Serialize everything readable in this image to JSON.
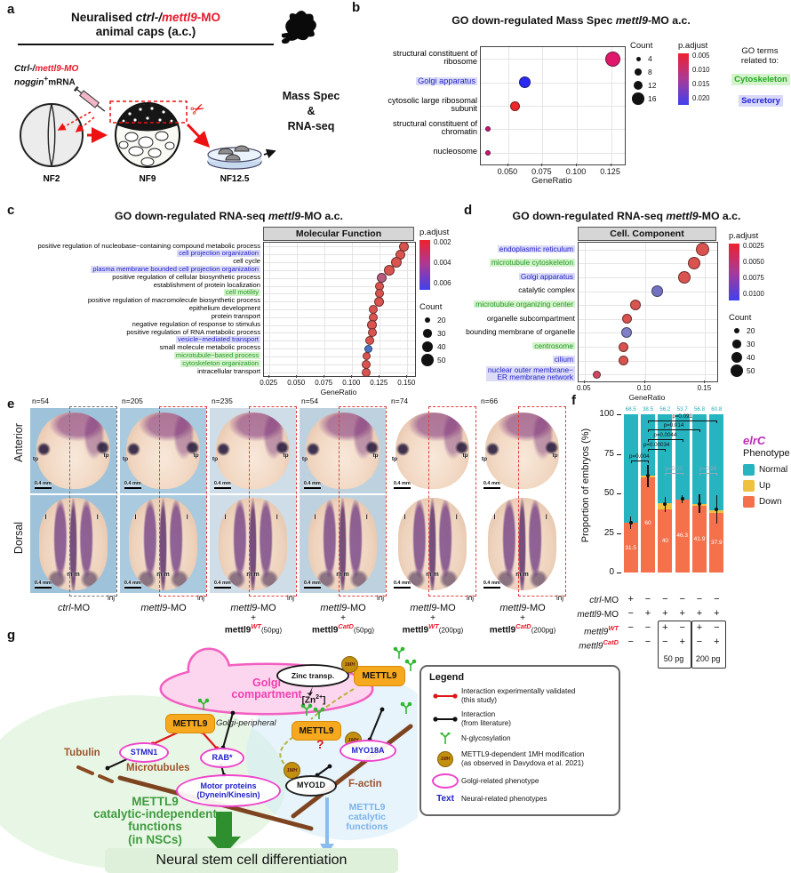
{
  "panel_labels": {
    "a": "a",
    "b": "b",
    "c": "c",
    "d": "d",
    "e": "e",
    "f": "f",
    "g": "g"
  },
  "panel_a": {
    "title_seg1": "Neuralised ",
    "title_seg2": "ctrl-/",
    "title_seg3": "mettl9",
    "title_seg4": "-MO",
    "title_line2": "animal caps (a.c.)",
    "inj_black": "Ctrl-/",
    "inj_red": "mettl9-MO",
    "noggin_italic": "noggin",
    "noggin_plus": "+",
    "noggin_rest": "mRNA",
    "stage1": "NF2",
    "stage2": "NF9",
    "stage3": "NF12.5",
    "out1": "Mass Spec",
    "out2": "&",
    "out3": "RNA-seq"
  },
  "chart_data": [
    {
      "id": "b",
      "type": "scatter",
      "title_pre": "GO down-regulated Mass Spec ",
      "title_italic": "mettl9",
      "title_post": "-MO a.c.",
      "xlabel": "GeneRatio",
      "xlim": [
        0.03,
        0.135
      ],
      "xticks": [
        "0.050",
        "0.075",
        "0.100",
        "0.125"
      ],
      "xtick_vals": [
        0.05,
        0.075,
        0.1,
        0.125
      ],
      "categories": [
        {
          "lines": [
            "structural constituent of",
            "ribosome"
          ],
          "color": "#000000"
        },
        {
          "lines": [
            "Golgi apparatus"
          ],
          "color": "#2222cc",
          "bg": "#dcdcf7"
        },
        {
          "lines": [
            "cytosolic large ribosomal",
            "subunit"
          ],
          "color": "#000000"
        },
        {
          "lines": [
            "structural constituent of",
            "chromatin"
          ],
          "color": "#000000"
        },
        {
          "lines": [
            "nucleosome"
          ],
          "color": "#000000"
        }
      ],
      "points": [
        {
          "gene_ratio": 0.126,
          "count": 16,
          "size": 17,
          "color": "#e0186c"
        },
        {
          "gene_ratio": 0.062,
          "count": 12,
          "size": 13,
          "color": "#2a2af0"
        },
        {
          "gene_ratio": 0.055,
          "count": 10,
          "size": 11,
          "color": "#ef2929"
        },
        {
          "gene_ratio": 0.035,
          "count": 4,
          "size": 6,
          "color": "#cc1577"
        },
        {
          "gene_ratio": 0.035,
          "count": 4,
          "size": 6,
          "color": "#cc1577"
        }
      ],
      "count_legend": {
        "title": "Count",
        "items": [
          "4",
          "8",
          "12",
          "16"
        ]
      },
      "p_legend": {
        "title": "p.adjust",
        "ticks": [
          "0.005",
          "0.010",
          "0.015",
          "0.020"
        ]
      },
      "note": {
        "line1": "GO terms",
        "line2": "related to:",
        "items": [
          {
            "text": "Cytoskeleton",
            "color": "#22aa22",
            "bg": "#d4f2cc"
          },
          {
            "text": "Secretory",
            "color": "#2222dd",
            "bg": "#d8d8f8"
          }
        ]
      }
    },
    {
      "id": "c",
      "type": "scatter",
      "title_pre": "GO down-regulated RNA-seq ",
      "title_italic": "mettl9",
      "title_post": "-MO a.c.",
      "facet": "Molecular Function",
      "xlabel": "GeneRatio",
      "xlim": [
        0.02,
        0.157
      ],
      "xticks": [
        "0.025",
        "0.050",
        "0.075",
        "0.100",
        "0.125",
        "0.150"
      ],
      "xtick_vals": [
        0.025,
        0.05,
        0.075,
        0.1,
        0.125,
        0.15
      ],
      "categories": [
        {
          "lines": [
            "positive regulation of nucleobase−containing compound metabolic process"
          ],
          "color": "#000000"
        },
        {
          "lines": [
            "cell projection organization"
          ],
          "color": "#2222cc",
          "bg": "#dcdcf7"
        },
        {
          "lines": [
            "cell cycle"
          ],
          "color": "#000000"
        },
        {
          "lines": [
            "plasma membrane bounded cell projection organization"
          ],
          "color": "#2222cc",
          "bg": "#dcdcf7"
        },
        {
          "lines": [
            "positive regulation of cellular biosynthetic process"
          ],
          "color": "#000000"
        },
        {
          "lines": [
            "establishment of protein localization"
          ],
          "color": "#000000"
        },
        {
          "lines": [
            "cell motility"
          ],
          "color": "#229922",
          "bg": "#d4f2cc"
        },
        {
          "lines": [
            "positive regulation of macromolecule biosynthetic process"
          ],
          "color": "#000000"
        },
        {
          "lines": [
            "epithelium development"
          ],
          "color": "#000000"
        },
        {
          "lines": [
            "protein transport"
          ],
          "color": "#000000"
        },
        {
          "lines": [
            "negative regulation of response to stimulus"
          ],
          "color": "#000000"
        },
        {
          "lines": [
            "positive regulation of RNA metabolic process"
          ],
          "color": "#000000"
        },
        {
          "lines": [
            "vesicle−mediated transport"
          ],
          "color": "#2222cc",
          "bg": "#dcdcf7"
        },
        {
          "lines": [
            "small molecule metabolic process"
          ],
          "color": "#000000"
        },
        {
          "lines": [
            "microtubule−based process"
          ],
          "color": "#229922",
          "bg": "#d4f2cc"
        },
        {
          "lines": [
            "cytoskeleton organization"
          ],
          "color": "#229922",
          "bg": "#d4f2cc"
        },
        {
          "lines": [
            "intracellular transport"
          ],
          "color": "#000000"
        }
      ],
      "points": [
        {
          "gene_ratio": 0.147,
          "size": 11,
          "color": "#d9534f"
        },
        {
          "gene_ratio": 0.144,
          "size": 11,
          "color": "#d9534f"
        },
        {
          "gene_ratio": 0.14,
          "size": 12,
          "color": "#d9534f"
        },
        {
          "gene_ratio": 0.134,
          "size": 12,
          "color": "#d9534f"
        },
        {
          "gene_ratio": 0.127,
          "size": 11,
          "color": "#b85a80"
        },
        {
          "gene_ratio": 0.125,
          "size": 10,
          "color": "#d9534f"
        },
        {
          "gene_ratio": 0.125,
          "size": 10,
          "color": "#d9534f"
        },
        {
          "gene_ratio": 0.124,
          "size": 11,
          "color": "#d9534f"
        },
        {
          "gene_ratio": 0.119,
          "size": 10,
          "color": "#d9534f"
        },
        {
          "gene_ratio": 0.119,
          "size": 10,
          "color": "#d9534f"
        },
        {
          "gene_ratio": 0.118,
          "size": 11,
          "color": "#d9534f"
        },
        {
          "gene_ratio": 0.118,
          "size": 10,
          "color": "#d9534f"
        },
        {
          "gene_ratio": 0.116,
          "size": 10,
          "color": "#d9534f"
        },
        {
          "gene_ratio": 0.115,
          "size": 9,
          "color": "#4a74c4"
        },
        {
          "gene_ratio": 0.113,
          "size": 9,
          "color": "#d9534f"
        },
        {
          "gene_ratio": 0.113,
          "size": 10,
          "color": "#d9534f"
        },
        {
          "gene_ratio": 0.113,
          "size": 10,
          "color": "#d9534f"
        }
      ],
      "count_legend": {
        "title": "Count",
        "items": [
          "20",
          "30",
          "40",
          "50"
        ]
      },
      "p_legend": {
        "title": "p.adjust",
        "ticks": [
          "0.002",
          "0.004",
          "0.006"
        ]
      }
    },
    {
      "id": "d",
      "type": "scatter",
      "title_pre": "GO down-regulated RNA-seq ",
      "title_italic": "mettl9",
      "title_post": "-MO a.c.",
      "facet": "Cell. Component",
      "xlabel": "GeneRatio",
      "xlim": [
        0.045,
        0.16
      ],
      "xticks": [
        "0.05",
        "0.10",
        "0.15"
      ],
      "xtick_vals": [
        0.05,
        0.1,
        0.15
      ],
      "categories": [
        {
          "lines": [
            "endoplasmic reticulum"
          ],
          "color": "#2222cc",
          "bg": "#dcdcf7"
        },
        {
          "lines": [
            "microtubule cytoskeleton"
          ],
          "color": "#229922",
          "bg": "#d4f2cc"
        },
        {
          "lines": [
            "Golgi apparatus"
          ],
          "color": "#2222cc",
          "bg": "#dcdcf7"
        },
        {
          "lines": [
            "catalytic complex"
          ],
          "color": "#000000"
        },
        {
          "lines": [
            "microtubule organizing center"
          ],
          "color": "#229922",
          "bg": "#d4f2cc"
        },
        {
          "lines": [
            "organelle subcompartment"
          ],
          "color": "#000000"
        },
        {
          "lines": [
            "bounding membrane of organelle"
          ],
          "color": "#000000"
        },
        {
          "lines": [
            "centrosome"
          ],
          "color": "#229922",
          "bg": "#d4f2cc"
        },
        {
          "lines": [
            "cilium"
          ],
          "color": "#2222cc",
          "bg": "#dcdcf7"
        },
        {
          "lines": [
            "nuclear outer membrane−",
            "ER membrane network"
          ],
          "color": "#2222cc",
          "bg": "#dcdcf7"
        }
      ],
      "points": [
        {
          "gene_ratio": 0.148,
          "size": 15,
          "color": "#d9534f"
        },
        {
          "gene_ratio": 0.141,
          "size": 14,
          "color": "#d9534f"
        },
        {
          "gene_ratio": 0.133,
          "size": 14,
          "color": "#d9534f"
        },
        {
          "gene_ratio": 0.11,
          "size": 13,
          "color": "#7272c0"
        },
        {
          "gene_ratio": 0.092,
          "size": 12,
          "color": "#d9534f"
        },
        {
          "gene_ratio": 0.085,
          "size": 11,
          "color": "#d9534f"
        },
        {
          "gene_ratio": 0.085,
          "size": 12,
          "color": "#8080c8"
        },
        {
          "gene_ratio": 0.082,
          "size": 11,
          "color": "#d9534f"
        },
        {
          "gene_ratio": 0.082,
          "size": 11,
          "color": "#d9534f"
        },
        {
          "gene_ratio": 0.06,
          "size": 9,
          "color": "#cf4860"
        }
      ],
      "count_legend": {
        "title": "Count",
        "items": [
          "20",
          "30",
          "40",
          "50"
        ]
      },
      "p_legend": {
        "title": "p.adjust",
        "ticks": [
          "0.0025",
          "0.0050",
          "0.0075",
          "0.0100"
        ]
      }
    },
    {
      "id": "f",
      "type": "stacked_bar",
      "ylabel": "Proportion of embryos (%)",
      "yticks": [
        0,
        25,
        50,
        75,
        100
      ],
      "gene_label": "elrC",
      "legend_title": "Phenotype",
      "series": [
        {
          "name": "Normal",
          "color": "#27b4c1"
        },
        {
          "name": "Up",
          "color": "#efc13e"
        },
        {
          "name": "Down",
          "color": "#f4714b"
        }
      ],
      "bars": [
        {
          "normal": 68.5,
          "up": 0,
          "down": 31.5,
          "label_top": "68.5",
          "label_down": "31.5",
          "err_center": 31.5,
          "err": 4
        },
        {
          "normal": 38.5,
          "up": 1.5,
          "down": 60,
          "label_top": "38.5",
          "label_down": "60",
          "err_center": 61,
          "err": 7
        },
        {
          "normal": 56.2,
          "up": 3.8,
          "down": 40,
          "label_top": "56.2",
          "label_down": "40",
          "err_center": 43,
          "err": 5
        },
        {
          "normal": 53.7,
          "up": 0,
          "down": 46.3,
          "label_top": "53.7",
          "label_down": "46.3",
          "err_center": 46.5,
          "err": 2.5
        },
        {
          "normal": 56.8,
          "up": 1.3,
          "down": 41.9,
          "label_top": "56.8",
          "label_down": "41.9",
          "err_center": 43.5,
          "err": 6
        },
        {
          "normal": 60.8,
          "up": 1.3,
          "down": 37.9,
          "label_top": "60.8",
          "label_down": "37.9",
          "err_center": 40,
          "err": 9
        }
      ],
      "pvalues": [
        {
          "label": "p=0.004",
          "from": 0,
          "to": 1,
          "h": 71,
          "gray": false
        },
        {
          "label": "p=0.00034",
          "from": 1,
          "to": 2,
          "h": 78,
          "gray": false
        },
        {
          "label": "p=0.0044",
          "from": 1,
          "to": 3,
          "h": 84.5,
          "gray": false
        },
        {
          "label": "p=0.014",
          "from": 1,
          "to": 4,
          "h": 90.5,
          "gray": false
        },
        {
          "label": "p=0.091",
          "from": 1,
          "to": 5,
          "h": 96,
          "gray": false
        },
        {
          "label": "p=0.22",
          "from": 2,
          "to": 3,
          "h": 63,
          "gray": true
        },
        {
          "label": "p=0.99",
          "from": 4,
          "to": 5,
          "h": 63,
          "gray": true
        }
      ],
      "matrix": {
        "rows": [
          {
            "pre": "ctrl",
            "post": "-MO",
            "sup": "",
            "vals": [
              "+",
              "−",
              "−",
              "−",
              "−",
              "−"
            ]
          },
          {
            "pre": "mettl9",
            "post": "-MO",
            "sup": "",
            "vals": [
              "−",
              "+",
              "+",
              "+",
              "+",
              "+"
            ]
          },
          {
            "pre": "mettl9",
            "post": "",
            "sup": "WT",
            "vals": [
              "−",
              "−",
              "+",
              "−",
              "+",
              "−"
            ]
          },
          {
            "pre": "mettl9",
            "post": "",
            "sup": "CatD",
            "vals": [
              "−",
              "−",
              "−",
              "+",
              "−",
              "+"
            ]
          }
        ],
        "boxes": [
          {
            "label": "50 pg",
            "from": 2,
            "to": 3
          },
          {
            "label": "200 pg",
            "from": 4,
            "to": 5
          }
        ]
      }
    }
  ],
  "panel_e": {
    "row_labels": [
      "Anterior",
      "Dorsal"
    ],
    "scale_label": "0.4 mm",
    "ann": {
      "tp": "tp",
      "l": "l",
      "m": "m m",
      "inj": "inj"
    },
    "columns": [
      {
        "n": "n=54",
        "main_italic": "ctrl",
        "main_post": "-MO",
        "plus": "",
        "rescue": "",
        "sup": "",
        "dose": ""
      },
      {
        "n": "n=205",
        "main_italic": "mettl9",
        "main_post": "-MO",
        "plus": "",
        "rescue": "",
        "sup": "",
        "dose": ""
      },
      {
        "n": "n=235",
        "main_italic": "mettl9",
        "main_post": "-MO",
        "plus": "+",
        "rescue": "mettl9",
        "sup": "WT",
        "dose": "(50pg)"
      },
      {
        "n": "n=54",
        "main_italic": "mettl9",
        "main_post": "-MO",
        "plus": "+",
        "rescue": "mettl9",
        "sup": "CatD",
        "dose": "(50pg)"
      },
      {
        "n": "n=74",
        "main_italic": "mettl9",
        "main_post": "-MO",
        "plus": "+",
        "rescue": "mettl9",
        "sup": "WT",
        "dose": "(200pg)"
      },
      {
        "n": "n=66",
        "main_italic": "mettl9",
        "main_post": "-MO",
        "plus": "+",
        "rescue": "mettl9",
        "sup": "CatD",
        "dose": "(200pg)"
      }
    ]
  },
  "panel_g": {
    "golgi_line1": "Golgi",
    "golgi_line2": "compartment",
    "zinc": "Zinc transp.",
    "zn_pre": "[Zn",
    "zn_sup": "2+",
    "zn_post": "]",
    "mettl9": "METTL9",
    "one_mh": "1MH",
    "golgi_peripheral": "Golgi-peripheral",
    "stmn1": "STMN1",
    "rab": "RAB*",
    "myo18a": "MYO18A",
    "myo1d": "MYO1D",
    "motor_line1": "Motor proteins",
    "motor_line2": "(Dynein/Kinesin)",
    "tubulin": "Tubulin",
    "microtubules": "Microtubules",
    "factin": "F-actin",
    "question": "?",
    "green_l1": "METTL9",
    "green_l2": "catalytic-independent",
    "green_l3": "functions",
    "green_l4": "(in NSCs)",
    "blue_l1": "METTL9",
    "blue_l2": "catalytic",
    "blue_l3": "functions",
    "bottom_band": "Neural stem cell differentiation",
    "legend": {
      "title": "Legend",
      "items": [
        {
          "symbol": "red-connector",
          "symbol_text": "",
          "line1": "Interaction experimentally validated",
          "line2": "(this study)"
        },
        {
          "symbol": "black-connector",
          "symbol_text": "",
          "line1": "Interaction",
          "line2": "(from literature)"
        },
        {
          "symbol": "glyco-icon",
          "symbol_text": "",
          "line1": "N-glycosylation",
          "line2": ""
        },
        {
          "symbol": "1mh-badge",
          "symbol_text": "",
          "line1": "METTL9-dependent 1MH modification",
          "line2": "(as observed in Davydova et al. 2021)"
        },
        {
          "symbol": "pink-ellipse",
          "symbol_text": "",
          "line1": "Golgi-related phenotype",
          "line2": ""
        },
        {
          "symbol": "blue-text",
          "symbol_text": "Text",
          "line1": "Neural-related phenotypes",
          "line2": ""
        }
      ]
    }
  }
}
